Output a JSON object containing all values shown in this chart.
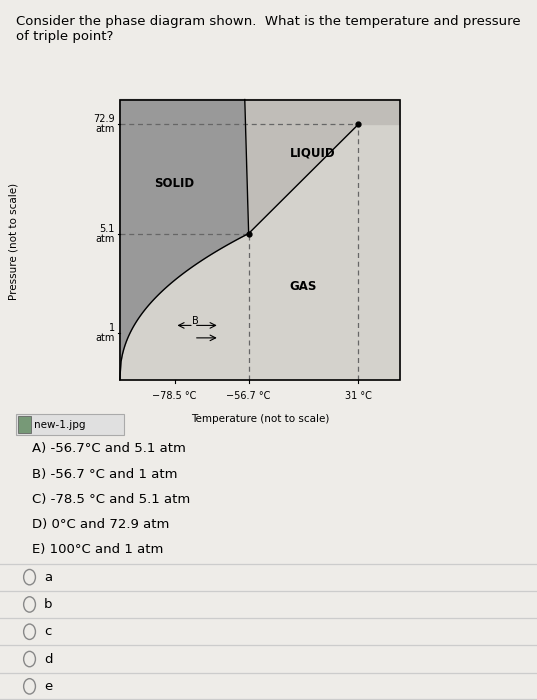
{
  "title_line1": "Consider the phase diagram shown.  What is the temperature and pressure of triple point?",
  "title_fontsize": 9.5,
  "bg_color": "#eeece8",
  "diagram": {
    "xlim": [
      0,
      10
    ],
    "ylim": [
      0,
      10
    ],
    "x_tick_labels": [
      "−78.5 °C",
      "−56.7 °C",
      "31 °C"
    ],
    "x_tick_pos": [
      2.5,
      4.8,
      8.2
    ],
    "y_tick_labels": [
      "72.9\natm",
      "5.1\natm",
      "1\natm"
    ],
    "y_tick_pos": [
      8.7,
      5.2,
      2.0
    ],
    "xlabel": "Temperature (not to scale)",
    "ylabel": "Pressure (not to scale)",
    "solid_color": "#999999",
    "gas_color": "#d4d2cc",
    "liquid_color": "#c0bdb8",
    "solid_label": "SOLID",
    "gas_label": "GAS",
    "liquid_label": "LIQUID",
    "triple_point": [
      4.8,
      5.2
    ],
    "critical_point": [
      8.2,
      8.7
    ],
    "dashed_color": "#666666",
    "point_b_x": 3.0,
    "point_b_y": 2.0
  },
  "choices": [
    "A) -56.7°C and 5.1 atm",
    "B) -56.7 °C and 1 atm",
    "C) -78.5 °C and 5.1 atm",
    "D) 0°C and 72.9 atm",
    "E) 100°C and 1 atm"
  ],
  "radio_labels": [
    "a",
    "b",
    "c",
    "d",
    "e"
  ],
  "thumbnail_label": "new-1.jpg",
  "choice_fontsize": 9.5,
  "radio_fontsize": 9.5
}
